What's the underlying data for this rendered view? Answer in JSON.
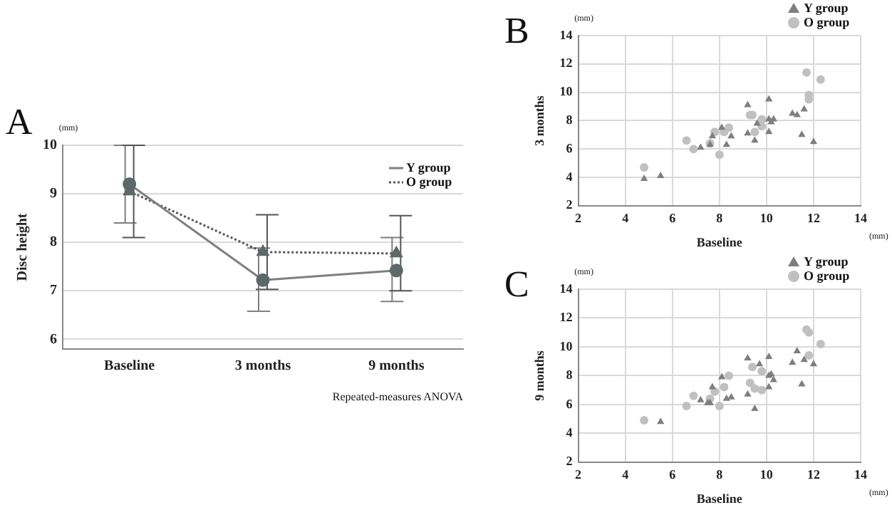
{
  "chart_data": [
    {
      "type": "line",
      "title": "A",
      "ylabel": "Disc height",
      "categories": [
        "Baseline",
        "3 months",
        "9 months"
      ],
      "ylim": [
        5.8,
        10
      ],
      "yticks": [
        6,
        7,
        8,
        9,
        10
      ],
      "grid": "y",
      "legend": "top right",
      "series": [
        {
          "name": "Y group",
          "color": "#7f7f7f",
          "marker": "circle",
          "line_style": "solid",
          "values": [
            9.2,
            7.22,
            7.42
          ],
          "errors": [
            [
              8.4,
              10.0
            ],
            [
              6.58,
              7.88
            ],
            [
              6.78,
              8.1
            ]
          ]
        },
        {
          "name": "O group",
          "color": "#555555",
          "marker": "triangle",
          "line_style": "dotted",
          "values": [
            9.05,
            7.8,
            7.77
          ],
          "errors": [
            [
              8.1,
              10.0
            ],
            [
              7.03,
              8.57
            ],
            [
              7.0,
              8.55
            ]
          ]
        }
      ],
      "annotations": [
        "(mm)",
        "Repeated-measures ANOVA"
      ]
    },
    {
      "type": "scatter",
      "title": "B",
      "xlabel": "Baseline",
      "ylabel": "3 months",
      "xlim": [
        2,
        14
      ],
      "ylim": [
        2,
        14
      ],
      "xticks": [
        2,
        4,
        6,
        8,
        10,
        12,
        14
      ],
      "yticks": [
        2,
        4,
        6,
        8,
        10,
        12,
        14
      ],
      "grid": true,
      "legend": "top right",
      "series": [
        {
          "name": "Y group",
          "color": "#7f7f7f",
          "marker": "triangle",
          "x": [
            4.8,
            5.5,
            7.2,
            7.6,
            7.7,
            8.1,
            8.3,
            8.5,
            9.2,
            9.2,
            9.5,
            9.6,
            10.1,
            10.1,
            10.1,
            10.2,
            10.3,
            11.1,
            11.3,
            11.6,
            11.5,
            12.0
          ],
          "values": [
            3.9,
            4.1,
            6.1,
            6.3,
            6.9,
            7.5,
            6.3,
            6.9,
            9.1,
            7.1,
            6.6,
            7.8,
            9.5,
            8.1,
            7.2,
            7.9,
            8.1,
            8.5,
            8.4,
            8.8,
            7.0,
            6.5
          ]
        },
        {
          "name": "O group",
          "color": "#c0c0c0",
          "marker": "circle",
          "x": [
            4.8,
            6.6,
            6.9,
            7.6,
            7.8,
            8.0,
            8.2,
            8.4,
            9.3,
            9.4,
            9.5,
            9.8,
            9.8,
            11.7,
            11.8,
            11.8,
            12.3
          ],
          "values": [
            4.7,
            6.6,
            6.0,
            6.4,
            7.2,
            5.6,
            7.2,
            7.5,
            8.4,
            8.4,
            7.2,
            8.1,
            7.6,
            11.4,
            9.8,
            9.5,
            10.9
          ]
        }
      ],
      "annotations": [
        "(mm)",
        "(mm)"
      ]
    },
    {
      "type": "scatter",
      "title": "C",
      "xlabel": "Baseline",
      "ylabel": "9 months",
      "xlim": [
        2,
        14
      ],
      "ylim": [
        2,
        14
      ],
      "xticks": [
        2,
        4,
        6,
        8,
        10,
        12,
        14
      ],
      "yticks": [
        2,
        4,
        6,
        8,
        10,
        12,
        14
      ],
      "grid": true,
      "legend": "top right",
      "series": [
        {
          "name": "Y group",
          "color": "#7f7f7f",
          "marker": "triangle",
          "x": [
            5.5,
            7.2,
            7.5,
            7.6,
            7.7,
            8.1,
            8.3,
            8.5,
            9.2,
            9.2,
            9.5,
            9.7,
            10.1,
            10.1,
            10.2,
            10.1,
            10.3,
            11.1,
            11.3,
            11.6,
            11.5,
            12.0
          ],
          "values": [
            4.8,
            6.3,
            6.1,
            6.1,
            7.2,
            7.9,
            6.4,
            6.5,
            9.2,
            6.7,
            5.7,
            8.8,
            9.3,
            8.0,
            8.1,
            7.2,
            7.7,
            8.9,
            9.7,
            9.1,
            7.4,
            8.8
          ]
        },
        {
          "name": "O group",
          "color": "#c0c0c0",
          "marker": "circle",
          "x": [
            4.8,
            6.6,
            6.9,
            7.6,
            7.8,
            8.0,
            8.2,
            8.4,
            9.3,
            9.4,
            9.5,
            9.8,
            9.8,
            11.7,
            11.8,
            11.8,
            12.3
          ],
          "values": [
            4.9,
            5.9,
            6.6,
            6.4,
            6.9,
            5.9,
            7.2,
            8.0,
            7.5,
            8.6,
            7.1,
            8.3,
            7.0,
            11.2,
            11.0,
            9.4,
            10.2
          ]
        }
      ],
      "annotations": [
        "(mm)",
        "(mm)"
      ]
    }
  ]
}
